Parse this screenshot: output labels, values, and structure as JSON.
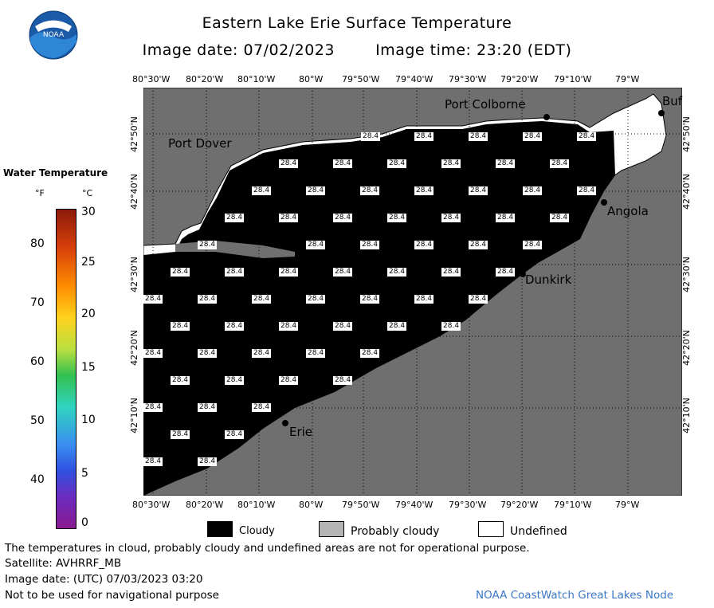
{
  "header": {
    "title": "Eastern Lake Erie Surface Temperature",
    "image_date": "Image date: 07/02/2023",
    "image_time": "Image time: 23:20 (EDT)",
    "logo_text": "NOAA"
  },
  "axes": {
    "lon_labels": [
      "80°30'W",
      "80°20'W",
      "80°10'W",
      "80°W",
      "79°50'W",
      "79°40'W",
      "79°30'W",
      "79°20'W",
      "79°10'W",
      "79°W"
    ],
    "lat_labels": [
      "42°50'N",
      "42°40'N",
      "42°30'N",
      "42°20'N",
      "42°10'N"
    ]
  },
  "legend": {
    "title": "Water Temperature",
    "unit_f": "°F",
    "unit_c": "°C",
    "f_ticks": [
      "80",
      "70",
      "60",
      "50",
      "40"
    ],
    "c_ticks": [
      "30",
      "25",
      "20",
      "15",
      "10",
      "5",
      "0"
    ]
  },
  "places": {
    "port_colborne": "Port Colborne",
    "port_dover": "Port Dover",
    "angola": "Angola",
    "dunkirk": "Dunkirk",
    "erie": "Erie",
    "buffalo": "Buf"
  },
  "temperature_label": "28.4",
  "key": {
    "cloudy": "Cloudy",
    "probably_cloudy": "Probably cloudy",
    "undefined": "Undefined"
  },
  "footer": {
    "note": "The temperatures in cloud, probably cloudy and undefined areas are not for operational purpose.",
    "satellite": "Satellite: AVHRRF_MB",
    "utc_date": "Image date: (UTC) 07/03/2023  03:20",
    "nav_warning": "Not to be used for navigational purpose",
    "credit": "NOAA CoastWatch Great Lakes Node"
  },
  "colors": {
    "land": "#6f6f6f",
    "cloudy": "#000000",
    "probably_cloudy": "#b4b4b4",
    "undefined": "#ffffff",
    "credit": "#3a78c8"
  }
}
